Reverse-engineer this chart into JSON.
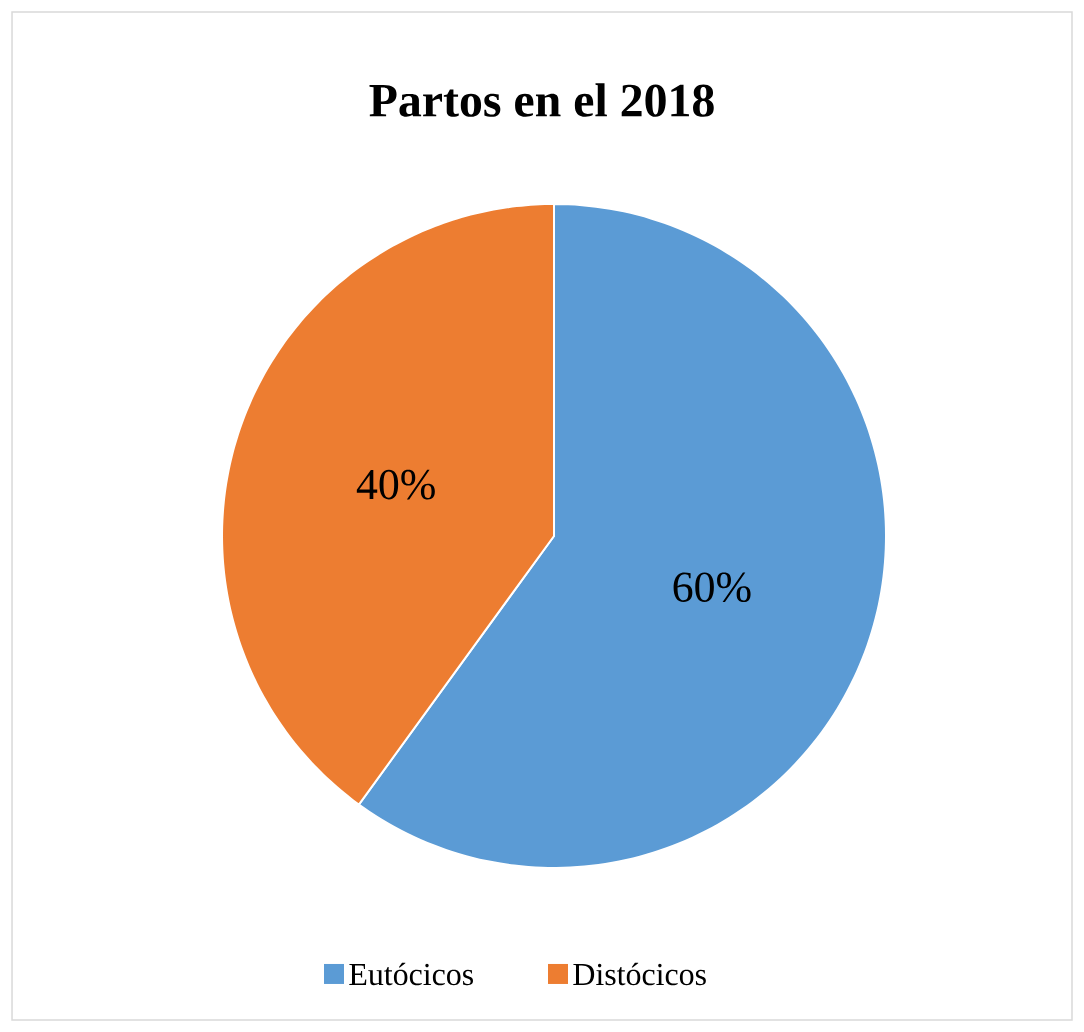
{
  "chart_data": {
    "type": "pie",
    "title": "Partos en el 2018",
    "categories": [
      "Eutócicos",
      "Distócicos"
    ],
    "values": [
      60,
      40
    ],
    "colors": [
      "#5b9bd5",
      "#ed7d31"
    ],
    "value_labels": [
      "60%",
      "40%"
    ],
    "legend": "bottom"
  }
}
